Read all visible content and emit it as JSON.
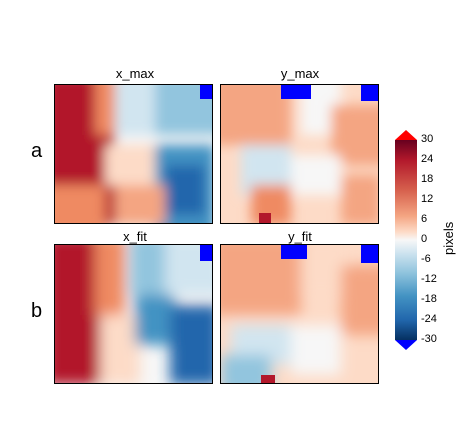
{
  "chart_data": {
    "type": "heatmap",
    "rows": [
      {
        "label": "a",
        "panels": [
          {
            "title": "x_max"
          },
          {
            "title": "y_max"
          }
        ]
      },
      {
        "label": "b",
        "panels": [
          {
            "title": "x_fit"
          },
          {
            "title": "y_fit"
          }
        ]
      }
    ],
    "colorbar": {
      "label": "pixels",
      "min": -30,
      "max": 30,
      "ticks": [
        "30",
        "24",
        "18",
        "12",
        "6",
        "0",
        "-6",
        "-12",
        "-18",
        "-24",
        "-30"
      ],
      "extend": "both",
      "colormap": "RdBu_r",
      "over_color": "#ff0000",
      "under_color": "#0000ff"
    },
    "fields": {
      "x_max": {
        "description_values": "left region ~25-30, center ~-10 to 0, lower right ~-20"
      },
      "y_max": {
        "description_values": "mostly ~5-12, top-right corner ~-30"
      },
      "x_fit": {
        "description_values": "left region ~25-30, center ~-15, lower right ~-20"
      },
      "y_fit": {
        "description_values": "mostly ~5-10, center ~-5 to 0, top-right ~-30"
      }
    }
  }
}
